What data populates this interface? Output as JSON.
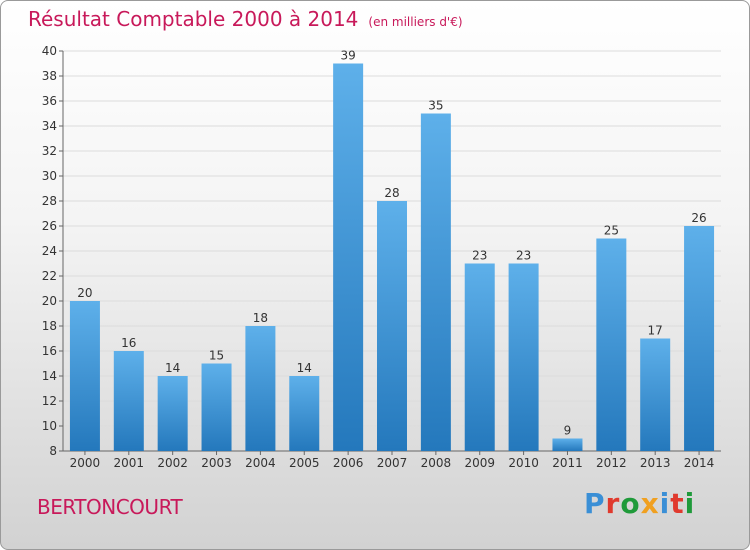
{
  "page": {
    "title": "Résultat Comptable 2000 à 2014",
    "subtitle": "(en milliers d'€)",
    "location": "BERTONCOURT",
    "logo": "Proxiti",
    "logo_colors": [
      "#3a8fd6",
      "#e03a2e",
      "#1f9a3a",
      "#f0a020",
      "#3a8fd6",
      "#e03a2e",
      "#1f9a3a"
    ]
  },
  "chart_data": {
    "type": "bar",
    "title": "Résultat Comptable 2000 à 2014",
    "subtitle": "(en milliers d'€)",
    "xlabel": "",
    "ylabel": "",
    "categories": [
      "2000",
      "2001",
      "2002",
      "2003",
      "2004",
      "2005",
      "2006",
      "2007",
      "2008",
      "2009",
      "2010",
      "2011",
      "2012",
      "2013",
      "2014"
    ],
    "values": [
      20,
      16,
      14,
      15,
      18,
      14,
      39,
      28,
      35,
      23,
      23,
      9,
      25,
      17,
      26
    ],
    "ylim": [
      8,
      40
    ],
    "yticks": [
      8,
      10,
      12,
      14,
      16,
      18,
      20,
      22,
      24,
      26,
      28,
      30,
      32,
      34,
      36,
      38,
      40
    ],
    "grid": true,
    "legend": "none",
    "bar_color": "#3a8fd6"
  }
}
